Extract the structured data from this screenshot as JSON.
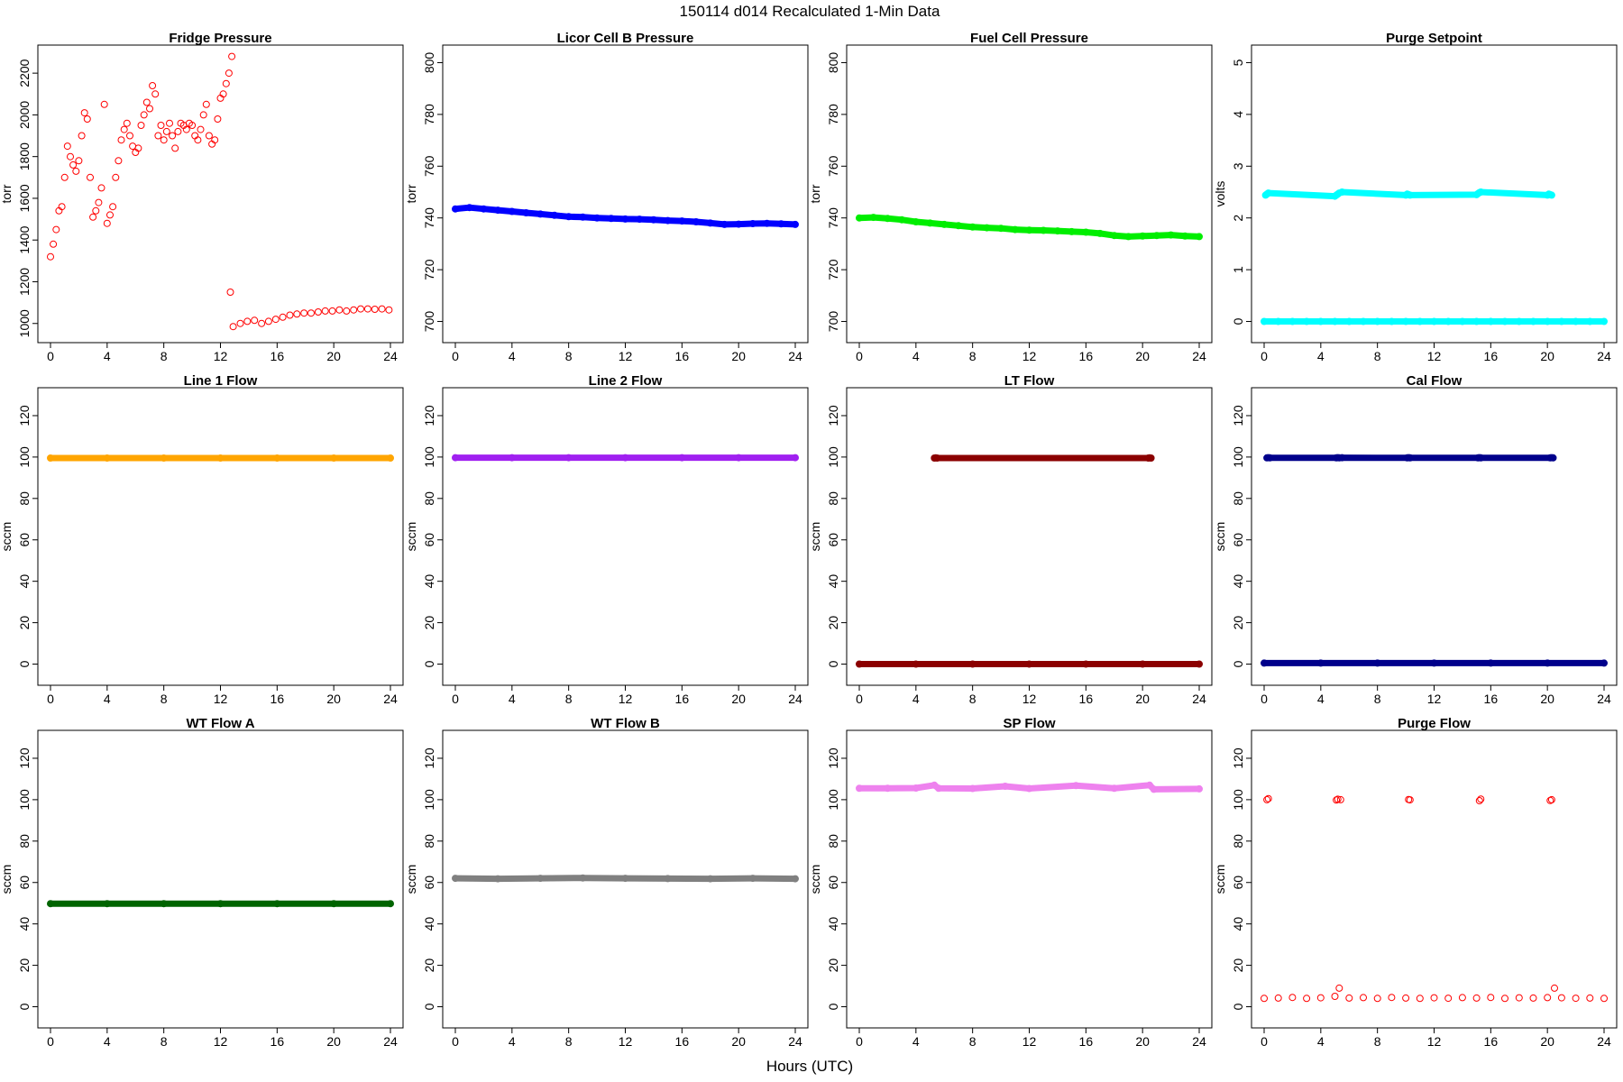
{
  "figure": {
    "title": "150114   d014   Recalculated 1-Min Data",
    "xlabel": "Hours (UTC)"
  },
  "chart_data": [
    {
      "type": "scatter",
      "title": "Fridge Pressure",
      "ylabel": "torr",
      "color": "#ff0000",
      "pch": "open",
      "xlim": [
        0,
        24
      ],
      "ylim": [
        960,
        2300
      ],
      "xticks": [
        0,
        4,
        8,
        12,
        16,
        20,
        24
      ],
      "yticks": [
        1000,
        1200,
        1400,
        1600,
        1800,
        2000,
        2200
      ],
      "series": [
        {
          "x": [
            0,
            0.2,
            0.4,
            0.6,
            0.8,
            1.0,
            1.2,
            1.4,
            1.6,
            1.8,
            2.0,
            2.2,
            2.4,
            2.6,
            2.8,
            3.0,
            3.2,
            3.4,
            3.6,
            3.8,
            4.0,
            4.2,
            4.4,
            4.6,
            4.8,
            5.0,
            5.2,
            5.4,
            5.6,
            5.8,
            6.0,
            6.2,
            6.4,
            6.6,
            6.8,
            7.0,
            7.2,
            7.4,
            7.6,
            7.8,
            8.0,
            8.2,
            8.4,
            8.6,
            8.8,
            9.0,
            9.2,
            9.4,
            9.6,
            9.8,
            10.0,
            10.2,
            10.4,
            10.6,
            10.8,
            11.0,
            11.2,
            11.4,
            11.6,
            11.8,
            12.0,
            12.2,
            12.4,
            12.6,
            12.8
          ],
          "y": [
            1320,
            1380,
            1450,
            1540,
            1560,
            1700,
            1850,
            1800,
            1760,
            1730,
            1780,
            1900,
            2010,
            1980,
            1700,
            1510,
            1540,
            1580,
            1650,
            2050,
            1480,
            1520,
            1560,
            1700,
            1780,
            1880,
            1930,
            1960,
            1900,
            1850,
            1820,
            1840,
            1950,
            2000,
            2060,
            2030,
            2140,
            2100,
            1900,
            1950,
            1880,
            1920,
            1960,
            1900,
            1840,
            1920,
            1960,
            1950,
            1930,
            1960,
            1950,
            1900,
            1880,
            1930,
            2000,
            2050,
            1900,
            1860,
            1880,
            1980,
            2080,
            2100,
            2150,
            2200,
            2280
          ]
        },
        {
          "x": [
            12.7,
            12.9,
            13.4,
            13.9,
            14.4,
            14.9,
            15.4,
            15.9,
            16.4,
            16.9,
            17.4,
            17.9,
            18.4,
            18.9,
            19.4,
            19.9,
            20.4,
            20.9,
            21.4,
            21.9,
            22.4,
            22.9,
            23.4,
            23.9
          ],
          "y": [
            1150,
            985,
            1000,
            1010,
            1015,
            1000,
            1010,
            1020,
            1030,
            1040,
            1045,
            1050,
            1050,
            1055,
            1060,
            1060,
            1065,
            1060,
            1065,
            1070,
            1070,
            1068,
            1070,
            1065
          ]
        }
      ]
    },
    {
      "type": "scatter",
      "title": "Licor Cell B Pressure",
      "ylabel": "torr",
      "color": "#0000ff",
      "pch": "filled",
      "xlim": [
        0,
        24
      ],
      "ylim": [
        696,
        804
      ],
      "xticks": [
        0,
        4,
        8,
        12,
        16,
        20,
        24
      ],
      "yticks": [
        700,
        720,
        740,
        760,
        780,
        800
      ],
      "series": [
        {
          "x": [
            0,
            1,
            2,
            3,
            4,
            5,
            6,
            7,
            8,
            9,
            10,
            11,
            12,
            13,
            14,
            15,
            16,
            17,
            18,
            19,
            20,
            21,
            22,
            23,
            24
          ],
          "y": [
            743.5,
            744,
            743.5,
            743,
            742.5,
            742,
            741.5,
            741,
            740.5,
            740.3,
            740,
            739.8,
            739.6,
            739.5,
            739.3,
            739,
            738.8,
            738.5,
            738,
            737.5,
            737.6,
            737.8,
            737.9,
            737.7,
            737.5
          ]
        }
      ]
    },
    {
      "type": "scatter",
      "title": "Fuel Cell Pressure",
      "ylabel": "torr",
      "color": "#00ee00",
      "pch": "filled",
      "xlim": [
        0,
        24
      ],
      "ylim": [
        696,
        804
      ],
      "xticks": [
        0,
        4,
        8,
        12,
        16,
        20,
        24
      ],
      "yticks": [
        700,
        720,
        740,
        760,
        780,
        800
      ],
      "series": [
        {
          "x": [
            0,
            1,
            2,
            3,
            4,
            5,
            6,
            7,
            8,
            9,
            10,
            11,
            12,
            13,
            14,
            15,
            16,
            17,
            18,
            19,
            20,
            21,
            22,
            23,
            24
          ],
          "y": [
            740,
            740.2,
            739.8,
            739.3,
            738.5,
            738,
            737.5,
            737,
            736.5,
            736.2,
            736,
            735.5,
            735.3,
            735.2,
            735,
            734.7,
            734.5,
            734,
            733.2,
            732.8,
            733,
            733.2,
            733.4,
            733,
            732.8
          ]
        }
      ]
    },
    {
      "type": "scatter",
      "title": "Purge Setpoint",
      "ylabel": "volts",
      "color": "#00ffff",
      "pch": "filled",
      "xlim": [
        0,
        24
      ],
      "ylim": [
        -0.2,
        5.2
      ],
      "xticks": [
        0,
        4,
        8,
        12,
        16,
        20,
        24
      ],
      "yticks": [
        0,
        1,
        2,
        3,
        4,
        5
      ],
      "series": [
        {
          "x": [
            0,
            1,
            2,
            3,
            4,
            5,
            6,
            7,
            8,
            9,
            10,
            11,
            12,
            13,
            14,
            15,
            16,
            17,
            18,
            19,
            20,
            21,
            22,
            23,
            24
          ],
          "y": [
            0,
            0,
            0,
            0,
            0,
            0,
            0,
            0,
            0,
            0,
            0,
            0,
            0,
            0,
            0,
            0,
            0,
            0,
            0,
            0,
            0,
            0,
            0,
            0,
            0
          ]
        },
        {
          "x": [
            0.1,
            0.2,
            0.3,
            5.0,
            5.1,
            5.2,
            5.3,
            5.5,
            10.0,
            10.1,
            10.2,
            10.3,
            15.0,
            15.1,
            15.2,
            15.3,
            20.0,
            20.1,
            20.2,
            20.3
          ],
          "y": [
            2.44,
            2.46,
            2.48,
            2.42,
            2.44,
            2.46,
            2.48,
            2.5,
            2.44,
            2.46,
            2.45,
            2.44,
            2.45,
            2.47,
            2.49,
            2.5,
            2.44,
            2.46,
            2.45,
            2.44
          ]
        }
      ]
    },
    {
      "type": "scatter",
      "title": "Line 1 Flow",
      "ylabel": "sccm",
      "color": "#ffa500",
      "pch": "filled",
      "xlim": [
        0,
        24
      ],
      "ylim": [
        -5,
        130
      ],
      "xticks": [
        0,
        4,
        8,
        12,
        16,
        20,
        24
      ],
      "yticks": [
        0,
        20,
        40,
        60,
        80,
        100,
        120
      ],
      "series": [
        {
          "x": [
            0,
            4,
            8,
            12,
            16,
            20,
            24
          ],
          "y": [
            99.5,
            99.5,
            99.5,
            99.5,
            99.5,
            99.5,
            99.5
          ]
        }
      ]
    },
    {
      "type": "scatter",
      "title": "Line 2 Flow",
      "ylabel": "sccm",
      "color": "#a020f0",
      "pch": "filled",
      "xlim": [
        0,
        24
      ],
      "ylim": [
        -5,
        130
      ],
      "xticks": [
        0,
        4,
        8,
        12,
        16,
        20,
        24
      ],
      "yticks": [
        0,
        20,
        40,
        60,
        80,
        100,
        120
      ],
      "series": [
        {
          "x": [
            0,
            4,
            8,
            12,
            16,
            20,
            24
          ],
          "y": [
            99.7,
            99.7,
            99.7,
            99.7,
            99.7,
            99.7,
            99.7
          ]
        }
      ]
    },
    {
      "type": "scatter",
      "title": "LT Flow",
      "ylabel": "sccm",
      "color": "#8b0000",
      "pch": "filled",
      "xlim": [
        0,
        24
      ],
      "ylim": [
        -5,
        130
      ],
      "xticks": [
        0,
        4,
        8,
        12,
        16,
        20,
        24
      ],
      "yticks": [
        0,
        20,
        40,
        60,
        80,
        100,
        120
      ],
      "series": [
        {
          "x": [
            0,
            4,
            8,
            12,
            16,
            20,
            24
          ],
          "y": [
            0,
            0,
            0,
            0,
            0,
            0,
            0
          ]
        },
        {
          "x": [
            5.3,
            5.4,
            5.5,
            20.4,
            20.5,
            20.6
          ],
          "y": [
            99.5,
            99.6,
            99.5,
            99.5,
            99.6,
            99.5
          ]
        }
      ]
    },
    {
      "type": "scatter",
      "title": "Cal Flow",
      "ylabel": "sccm",
      "color": "#00008b",
      "pch": "filled",
      "xlim": [
        0,
        24
      ],
      "ylim": [
        -5,
        130
      ],
      "xticks": [
        0,
        4,
        8,
        12,
        16,
        20,
        24
      ],
      "yticks": [
        0,
        20,
        40,
        60,
        80,
        100,
        120
      ],
      "series": [
        {
          "x": [
            0,
            4,
            8,
            12,
            16,
            20,
            24
          ],
          "y": [
            0.5,
            0.5,
            0.5,
            0.5,
            0.5,
            0.5,
            0.5
          ]
        },
        {
          "x": [
            0.2,
            0.3,
            0.4,
            5.1,
            5.2,
            5.3,
            5.5,
            10.1,
            10.2,
            10.3,
            15.1,
            15.2,
            15.3,
            20.2,
            20.3,
            20.4
          ],
          "y": [
            99.6,
            99.7,
            99.6,
            99.6,
            99.7,
            99.6,
            99.7,
            99.6,
            99.7,
            99.6,
            99.6,
            99.7,
            99.6,
            99.6,
            99.7,
            99.6
          ]
        }
      ]
    },
    {
      "type": "scatter",
      "title": "WT Flow A",
      "ylabel": "sccm",
      "color": "#006400",
      "pch": "filled",
      "xlim": [
        0,
        24
      ],
      "ylim": [
        -5,
        130
      ],
      "xticks": [
        0,
        4,
        8,
        12,
        16,
        20,
        24
      ],
      "yticks": [
        0,
        20,
        40,
        60,
        80,
        100,
        120
      ],
      "series": [
        {
          "x": [
            0,
            4,
            8,
            12,
            16,
            20,
            24
          ],
          "y": [
            49.8,
            49.8,
            49.8,
            49.8,
            49.8,
            49.8,
            49.8
          ]
        }
      ]
    },
    {
      "type": "scatter",
      "title": "WT Flow B",
      "ylabel": "sccm",
      "color": "#808080",
      "pch": "filled",
      "xlim": [
        0,
        24
      ],
      "ylim": [
        -5,
        130
      ],
      "xticks": [
        0,
        4,
        8,
        12,
        16,
        20,
        24
      ],
      "yticks": [
        0,
        20,
        40,
        60,
        80,
        100,
        120
      ],
      "series": [
        {
          "x": [
            0,
            3,
            6,
            9,
            12,
            15,
            18,
            21,
            24
          ],
          "y": [
            62,
            61.8,
            62,
            62.2,
            62,
            61.9,
            61.8,
            62,
            61.8
          ]
        }
      ]
    },
    {
      "type": "scatter",
      "title": "SP Flow",
      "ylabel": "sccm",
      "color": "#ee82ee",
      "pch": "filled",
      "xlim": [
        0,
        24
      ],
      "ylim": [
        -5,
        130
      ],
      "xticks": [
        0,
        4,
        8,
        12,
        16,
        20,
        24
      ],
      "yticks": [
        0,
        20,
        40,
        60,
        80,
        100,
        120
      ],
      "series": [
        {
          "x": [
            0,
            2,
            4,
            5.3,
            5.6,
            8,
            10.3,
            12,
            15.3,
            18,
            20.5,
            20.8,
            24
          ],
          "y": [
            105.5,
            105.5,
            105.6,
            107,
            105.5,
            105.4,
            106.5,
            105.4,
            106.8,
            105.5,
            107,
            105,
            105.2
          ]
        }
      ]
    },
    {
      "type": "scatter",
      "title": "Purge Flow",
      "ylabel": "sccm",
      "color": "#ff0000",
      "pch": "open",
      "xlim": [
        0,
        24
      ],
      "ylim": [
        -5,
        130
      ],
      "xticks": [
        0,
        4,
        8,
        12,
        16,
        20,
        24
      ],
      "yticks": [
        0,
        20,
        40,
        60,
        80,
        100,
        120
      ],
      "series": [
        {
          "x": [
            0,
            1,
            2,
            3,
            4,
            5,
            5.3,
            6,
            7,
            8,
            9,
            10,
            11,
            12,
            13,
            14,
            15,
            16,
            17,
            18,
            19,
            20,
            20.5,
            21,
            22,
            23,
            24
          ],
          "y": [
            4,
            4.2,
            4.5,
            4,
            4.3,
            5,
            9,
            4.2,
            4.4,
            4,
            4.5,
            4.2,
            4,
            4.3,
            4.1,
            4.4,
            4.2,
            4.5,
            4,
            4.3,
            4.2,
            4.4,
            9,
            4.3,
            4.1,
            4.2,
            4
          ]
        },
        {
          "x": [
            0.2,
            0.3,
            5.1,
            5.2,
            5.4,
            10.2,
            10.3,
            15.2,
            15.3,
            20.2,
            20.3
          ],
          "y": [
            100,
            100.5,
            99.8,
            100.2,
            100,
            100.1,
            99.9,
            99.5,
            100.3,
            99.6,
            100
          ]
        }
      ]
    }
  ]
}
